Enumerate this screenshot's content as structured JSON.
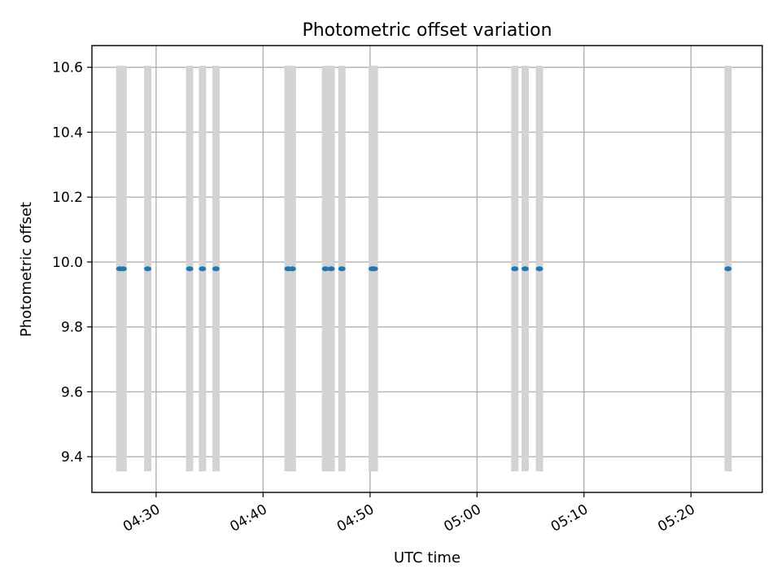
{
  "chart_data": {
    "type": "scatter",
    "title": "Photometric offset variation",
    "xlabel": "UTC time",
    "ylabel": "Photometric offset",
    "x_axis": {
      "kind": "time",
      "range": [
        "04:24:00",
        "05:26:40"
      ],
      "ticks": [
        "04:30",
        "04:40",
        "04:50",
        "05:00",
        "05:10",
        "05:20"
      ]
    },
    "y_axis": {
      "range": [
        9.29,
        10.667
      ],
      "ticks": [
        9.4,
        9.6,
        9.8,
        10.0,
        10.2,
        10.4,
        10.6
      ]
    },
    "grid": true,
    "error_band": [
      9.355,
      10.605
    ],
    "colors": {
      "points": "#1f77b4",
      "error_bars": "#d3d3d3",
      "grid": "#b0b0b0"
    },
    "points": [
      {
        "time": "04:26:36",
        "y": 9.979
      },
      {
        "time": "04:26:55",
        "y": 9.979
      },
      {
        "time": "04:29:13",
        "y": 9.979
      },
      {
        "time": "04:33:08",
        "y": 9.979
      },
      {
        "time": "04:34:20",
        "y": 9.979
      },
      {
        "time": "04:35:36",
        "y": 9.979
      },
      {
        "time": "04:42:20",
        "y": 9.979
      },
      {
        "time": "04:42:44",
        "y": 9.979
      },
      {
        "time": "04:45:50",
        "y": 9.979
      },
      {
        "time": "04:46:22",
        "y": 9.979
      },
      {
        "time": "04:47:22",
        "y": 9.979
      },
      {
        "time": "04:50:12",
        "y": 9.979
      },
      {
        "time": "04:50:24",
        "y": 9.979
      },
      {
        "time": "05:03:32",
        "y": 9.979
      },
      {
        "time": "05:04:30",
        "y": 9.979
      },
      {
        "time": "05:05:50",
        "y": 9.979
      },
      {
        "time": "05:23:28",
        "y": 9.979
      }
    ]
  }
}
